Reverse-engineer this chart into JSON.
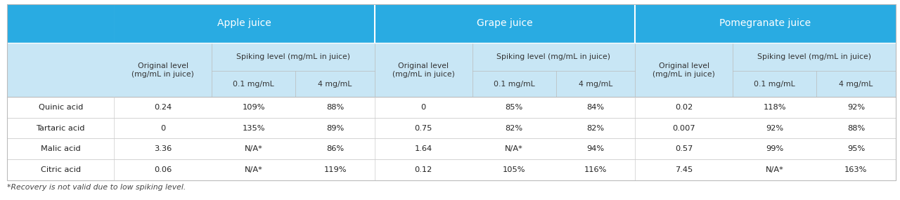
{
  "juice_labels": [
    "Apple juice",
    "Grape juice",
    "Pomegranate juice"
  ],
  "row_labels": [
    "Quinic acid",
    "Tartaric acid",
    "Malic acid",
    "Citric acid"
  ],
  "data": [
    [
      "0.24",
      "109%",
      "88%",
      "0",
      "85%",
      "84%",
      "0.02",
      "118%",
      "92%"
    ],
    [
      "0",
      "135%",
      "89%",
      "0.75",
      "82%",
      "82%",
      "0.007",
      "92%",
      "88%"
    ],
    [
      "3.36",
      "N/A*",
      "86%",
      "1.64",
      "N/A*",
      "94%",
      "0.57",
      "99%",
      "95%"
    ],
    [
      "0.06",
      "N/A*",
      "119%",
      "0.12",
      "105%",
      "116%",
      "7.45",
      "N/A*",
      "163%"
    ]
  ],
  "footnote": "*Recovery is not valid due to low spiking level.",
  "header_bg": "#29ABE2",
  "subheader_bg": "#C8E6F5",
  "white": "#FFFFFF",
  "header_text": "#FFFFFF",
  "subheader_text": "#333333",
  "data_text": "#222222",
  "border_color": "#BBBBBB",
  "row_div_color": "#CCCCCC",
  "orig_label": "Original level\n(mg/mL in juice)",
  "spike_label": "Spiking level (mg/mL in juice)",
  "sub01": "0.1 mg/mL",
  "sub4": "4 mg/mL"
}
